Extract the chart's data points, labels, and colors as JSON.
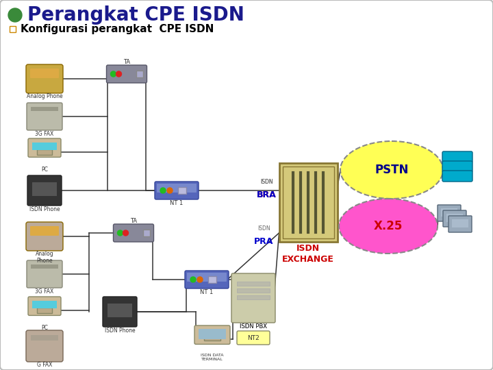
{
  "title": "Perangkat CPE ISDN",
  "subtitle": "Konfigurasi perangkat  CPE ISDN",
  "bg_color": "#ffffff",
  "title_color": "#1a1a8c",
  "exchange_color": "#d4c97a",
  "exchange_stripe": "#555533",
  "exchange_label": "ISDN\nEXCHANGE",
  "exchange_label_color": "#cc0000",
  "pstn_fill": "#ffff55",
  "pstn_label": "PSTN",
  "pstn_label_color": "#00008b",
  "x25_fill": "#ff55cc",
  "x25_label": "X.25",
  "x25_label_color": "#cc0000",
  "bra_text1": "ISDN",
  "bra_text2": "BRA",
  "pra_text1": "ISDN",
  "pra_text2": "PRA",
  "line_color": "#333333",
  "nt1_color": "#5566bb",
  "nt1_color2": "#9999cc",
  "ta_color": "#888899",
  "ta_color2": "#aaaacc",
  "pbx_color": "#ccccaa",
  "nt2_bg": "#ffff99",
  "phone_gold": "#c8a840",
  "phone_gray": "#aaaaaa",
  "pc_screen": "#55ccdd",
  "pc_body": "#ccbb99",
  "fax_color": "#bbbbaa",
  "isdn_phone": "#444444",
  "pstn_device": "#00aacc",
  "x25_device": "#99aabb"
}
